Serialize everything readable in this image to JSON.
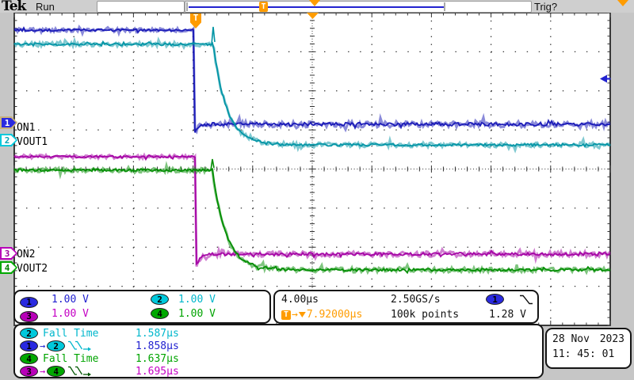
{
  "header": {
    "logo": "Tek",
    "acq_status": "Run",
    "trig_status": "Trig?",
    "trig_flag": "T"
  },
  "colors": {
    "ch1": "#2222d0",
    "ch1_trace": "#1616b6",
    "ch2": "#00b7cc",
    "ch2_trace": "#0094a4",
    "ch3": "#c400c4",
    "ch3_trace": "#a300a3",
    "ch4": "#00a400",
    "ch4_trace": "#008c00",
    "trigger_orange": "#ff9c00",
    "graticule_bg": "#ffffff",
    "grid_dots": "#333333"
  },
  "readouts": {
    "scales": [
      {
        "ch": "1",
        "scale": "1.00 V"
      },
      {
        "ch": "2",
        "scale": "1.00 V"
      },
      {
        "ch": "3",
        "scale": "1.00 V"
      },
      {
        "ch": "4",
        "scale": "1.00 V"
      }
    ],
    "timebase": {
      "scale": "4.00µs",
      "delay": "7.92000µs",
      "sample_rate": "2.50GS/s",
      "record_length": "100k points",
      "trig_source": "1",
      "trig_level": "1.28 V",
      "trig_slope_icon": "falling-edge"
    },
    "measurements": {
      "rows": [
        {
          "badge": "2",
          "label": "Fall Time",
          "value": "1.587µs"
        },
        {
          "from": "1",
          "arrow": "→",
          "to": "2",
          "icon": "fall-fall-delay",
          "value": "1.858µs"
        },
        {
          "badge": "4",
          "label": "Fall Time",
          "value": "1.637µs"
        },
        {
          "from": "3",
          "arrow": "→",
          "to": "4",
          "icon": "fall-fall-delay",
          "value": "1.695µs"
        }
      ]
    },
    "datetime": {
      "date": "28 Nov",
      "year": "2023",
      "time": "11: 45: 01"
    }
  },
  "waveform": {
    "labels": [
      {
        "text": "ON1"
      },
      {
        "text": "VOUT1"
      },
      {
        "text": "ON2"
      },
      {
        "text": "VOUT2"
      }
    ],
    "markers": [
      {
        "ch": "1"
      },
      {
        "ch": "2"
      },
      {
        "ch": "3"
      },
      {
        "ch": "4"
      }
    ],
    "traces": [
      {
        "ch": 1,
        "color": "#1616b6",
        "type": "step",
        "high": 38,
        "low": 157,
        "fall": 246,
        "tau": 0,
        "under": 11,
        "spike": 0,
        "noise": [
          2.4,
          3.8
        ],
        "seed": 11
      },
      {
        "ch": 3,
        "color": "#a300a3",
        "type": "step",
        "high": 198,
        "low": 321,
        "fall": 248,
        "tau": 0,
        "under": 13,
        "spike": 0,
        "noise": [
          2.4,
          3.4
        ],
        "seed": 33
      },
      {
        "ch": 2,
        "color": "#0094a4",
        "type": "exp",
        "high": 56,
        "low": 183,
        "fall": 269,
        "tau": 17,
        "under": 0,
        "spike": 22,
        "noise": [
          2.8,
          3.0
        ],
        "seed": 22
      },
      {
        "ch": 4,
        "color": "#008c00",
        "type": "exp",
        "high": 215,
        "low": 341,
        "fall": 268,
        "tau": 17,
        "under": 0,
        "spike": 14,
        "noise": [
          2.8,
          3.0
        ],
        "seed": 44
      }
    ]
  },
  "chart_data": {
    "type": "line",
    "title": "4-channel power sequencing fall-time capture",
    "x_units": "µs",
    "timebase_us_per_div": 4.0,
    "volts_per_div": 1.0,
    "divisions": {
      "horizontal": 10,
      "vertical": 8
    },
    "sample_rate": "2.50GS/s",
    "record_length": "100k points",
    "trigger": {
      "source": "CH1",
      "level_v": 1.28,
      "slope": "falling",
      "delay_us": 7.92
    },
    "series": [
      {
        "name": "CH1 ON1",
        "shape": "step",
        "high_v": 2.4,
        "low_v": 0.0,
        "fall_at_us": 0.0
      },
      {
        "name": "CH2 VOUT1",
        "shape": "exp-decay",
        "high_v": 2.45,
        "low_v": -0.15,
        "fall_start_us": 1.2,
        "fall_time_us": 1.587
      },
      {
        "name": "CH3 ON2",
        "shape": "step",
        "high_v": 2.45,
        "low_v": -0.05,
        "fall_at_us": 0.1
      },
      {
        "name": "CH4 VOUT2",
        "shape": "exp-decay",
        "high_v": 2.5,
        "low_v": -0.1,
        "fall_start_us": 1.1,
        "fall_time_us": 1.637
      }
    ],
    "measurements": [
      {
        "source": "CH2",
        "type": "Fall Time",
        "value_us": 1.587
      },
      {
        "source": "CH1→CH2",
        "type": "Delay fall-fall",
        "value_us": 1.858
      },
      {
        "source": "CH4",
        "type": "Fall Time",
        "value_us": 1.637
      },
      {
        "source": "CH3→CH4",
        "type": "Delay fall-fall",
        "value_us": 1.695
      }
    ]
  }
}
